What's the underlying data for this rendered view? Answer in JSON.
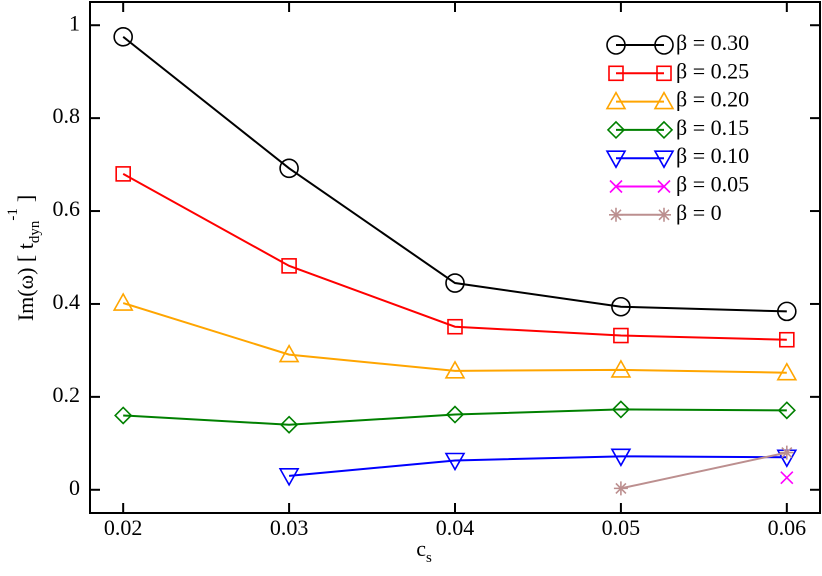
{
  "chart_data": {
    "type": "line",
    "x": [
      0.02,
      0.03,
      0.04,
      0.05,
      0.06
    ],
    "xlim": [
      0.018,
      0.062
    ],
    "xticks": [
      0.02,
      0.03,
      0.04,
      0.05,
      0.06
    ],
    "ylim": [
      -0.05,
      1.05
    ],
    "yticks": [
      0,
      0.2,
      0.4,
      0.6,
      0.8,
      1
    ],
    "xlabel": "c",
    "xlabel_sub": "s",
    "ylabel": "Im(ω) [ t",
    "ylabel_sub": "dyn",
    "ylabel_sup": "-1",
    "ylabel_end": "]",
    "legend": "upper right",
    "series": [
      {
        "name": "β = 0.30",
        "color": "#000000",
        "marker": "circle",
        "values": [
          0.975,
          0.692,
          0.445,
          0.394,
          0.384
        ]
      },
      {
        "name": "β = 0.25",
        "color": "#ff0000",
        "marker": "square",
        "values": [
          0.68,
          0.482,
          0.351,
          0.332,
          0.323
        ]
      },
      {
        "name": "β = 0.20",
        "color": "#ffa500",
        "marker": "triangle-up",
        "values": [
          0.402,
          0.291,
          0.256,
          0.258,
          0.252
        ]
      },
      {
        "name": "β = 0.15",
        "color": "#008000",
        "marker": "diamond",
        "values": [
          0.16,
          0.14,
          0.162,
          0.173,
          0.171
        ]
      },
      {
        "name": "β = 0.10",
        "color": "#0000ff",
        "marker": "triangle-down",
        "values": [
          null,
          0.03,
          0.063,
          0.072,
          0.07
        ]
      },
      {
        "name": "β = 0.05",
        "color": "#ff00ff",
        "marker": "x",
        "values": [
          null,
          null,
          null,
          null,
          0.026
        ]
      },
      {
        "name": "β = 0",
        "color": "#bc8f8f",
        "marker": "star",
        "values": [
          null,
          null,
          null,
          0.003,
          0.08
        ]
      }
    ]
  }
}
